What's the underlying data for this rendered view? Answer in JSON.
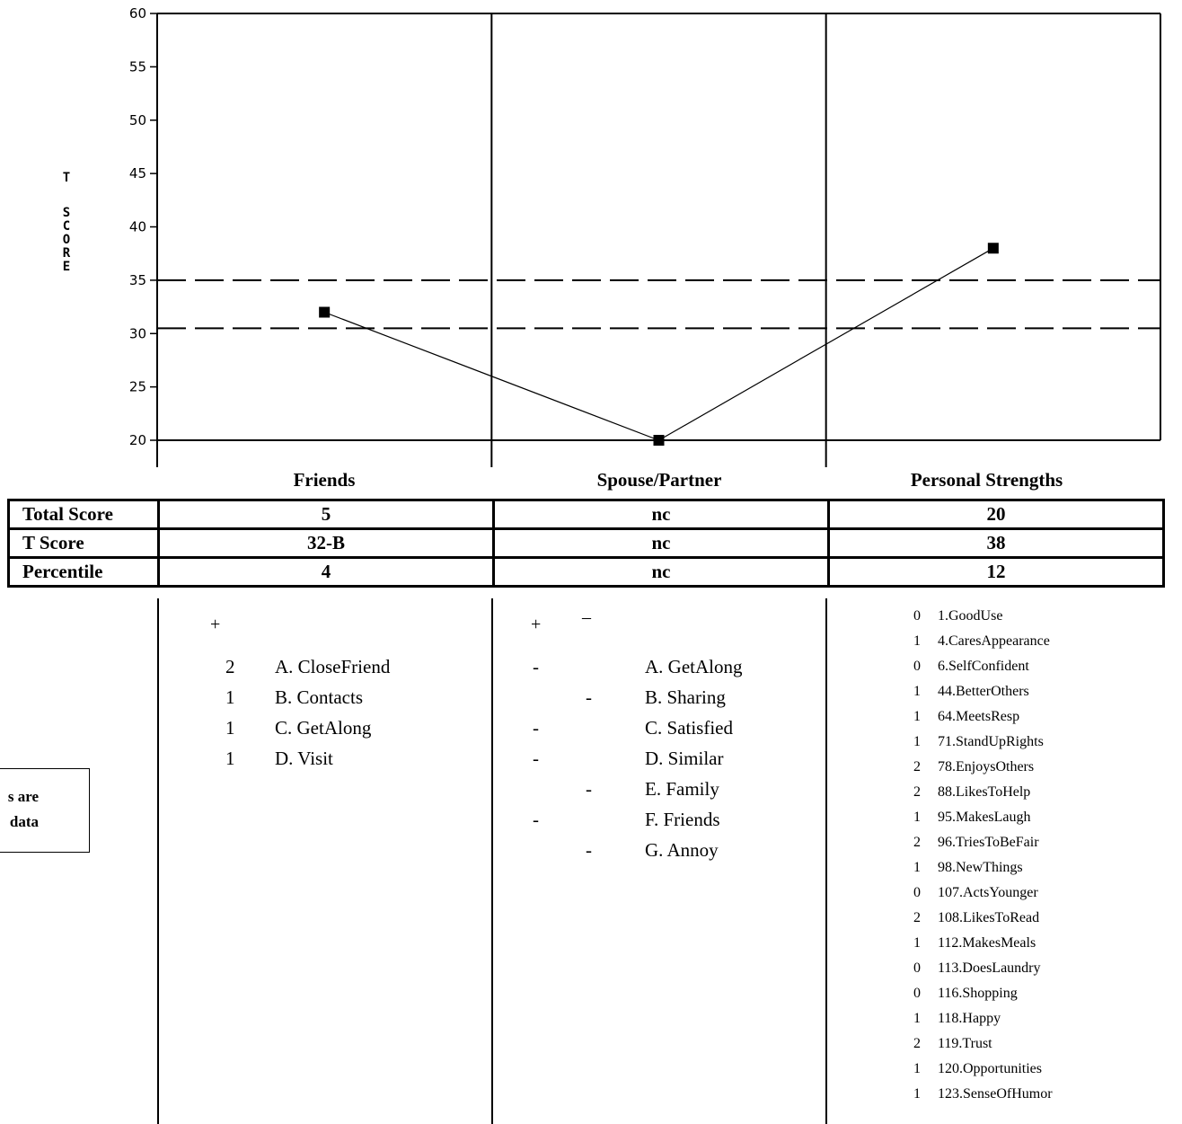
{
  "chart_data": {
    "type": "line",
    "ylabel": "T SCORE",
    "ylim": [
      20,
      60
    ],
    "yticks": [
      20,
      25,
      30,
      35,
      40,
      45,
      50,
      55,
      60
    ],
    "categories": [
      "Friends",
      "Spouse/Partner",
      "Personal Strengths"
    ],
    "values": [
      32,
      20,
      38
    ],
    "reference_lines": [
      35,
      30.5
    ],
    "colors": {
      "line": "#000000",
      "marker": "#000000",
      "ref": "#000000"
    }
  },
  "score_table": {
    "rows": [
      {
        "label": "Total Score",
        "values": [
          "5",
          "nc",
          "20"
        ]
      },
      {
        "label": "T Score",
        "values": [
          "32-B",
          "nc",
          "38"
        ]
      },
      {
        "label": "Percentile",
        "values": [
          "4",
          "nc",
          "12"
        ]
      }
    ]
  },
  "friends": {
    "plus": "+",
    "items": [
      {
        "score": "2",
        "label": "A. CloseFriend"
      },
      {
        "score": "1",
        "label": "B. Contacts"
      },
      {
        "score": "1",
        "label": "C. GetAlong"
      },
      {
        "score": "1",
        "label": "D. Visit"
      }
    ]
  },
  "spouse": {
    "plus": "+",
    "minus": "–",
    "items": [
      {
        "plus_mark": "-",
        "minus_mark": "",
        "label": "A. GetAlong"
      },
      {
        "plus_mark": "",
        "minus_mark": "-",
        "label": "B. Sharing"
      },
      {
        "plus_mark": "-",
        "minus_mark": "",
        "label": "C. Satisfied"
      },
      {
        "plus_mark": "-",
        "minus_mark": "",
        "label": "D. Similar"
      },
      {
        "plus_mark": "",
        "minus_mark": "-",
        "label": "E. Family"
      },
      {
        "plus_mark": "-",
        "minus_mark": "",
        "label": "F. Friends"
      },
      {
        "plus_mark": "",
        "minus_mark": "-",
        "label": "G. Annoy"
      }
    ]
  },
  "personal_strengths": {
    "items": [
      {
        "score": "0",
        "label": "1.GoodUse"
      },
      {
        "score": "1",
        "label": "4.CaresAppearance"
      },
      {
        "score": "0",
        "label": "6.SelfConfident"
      },
      {
        "score": "1",
        "label": "44.BetterOthers"
      },
      {
        "score": "1",
        "label": "64.MeetsResp"
      },
      {
        "score": "1",
        "label": "71.StandUpRights"
      },
      {
        "score": "2",
        "label": "78.EnjoysOthers"
      },
      {
        "score": "2",
        "label": "88.LikesToHelp"
      },
      {
        "score": "1",
        "label": "95.MakesLaugh"
      },
      {
        "score": "2",
        "label": "96.TriesToBeFair"
      },
      {
        "score": "1",
        "label": "98.NewThings"
      },
      {
        "score": "0",
        "label": "107.ActsYounger"
      },
      {
        "score": "2",
        "label": "108.LikesToRead"
      },
      {
        "score": "1",
        "label": "112.MakesMeals"
      },
      {
        "score": "0",
        "label": "113.DoesLaundry"
      },
      {
        "score": "0",
        "label": "116.Shopping"
      },
      {
        "score": "1",
        "label": "118.Happy"
      },
      {
        "score": "2",
        "label": "119.Trust"
      },
      {
        "score": "1",
        "label": "120.Opportunities"
      },
      {
        "score": "1",
        "label": "123.SenseOfHumor"
      }
    ]
  },
  "note": {
    "line1": "s are",
    "line2": "data"
  }
}
